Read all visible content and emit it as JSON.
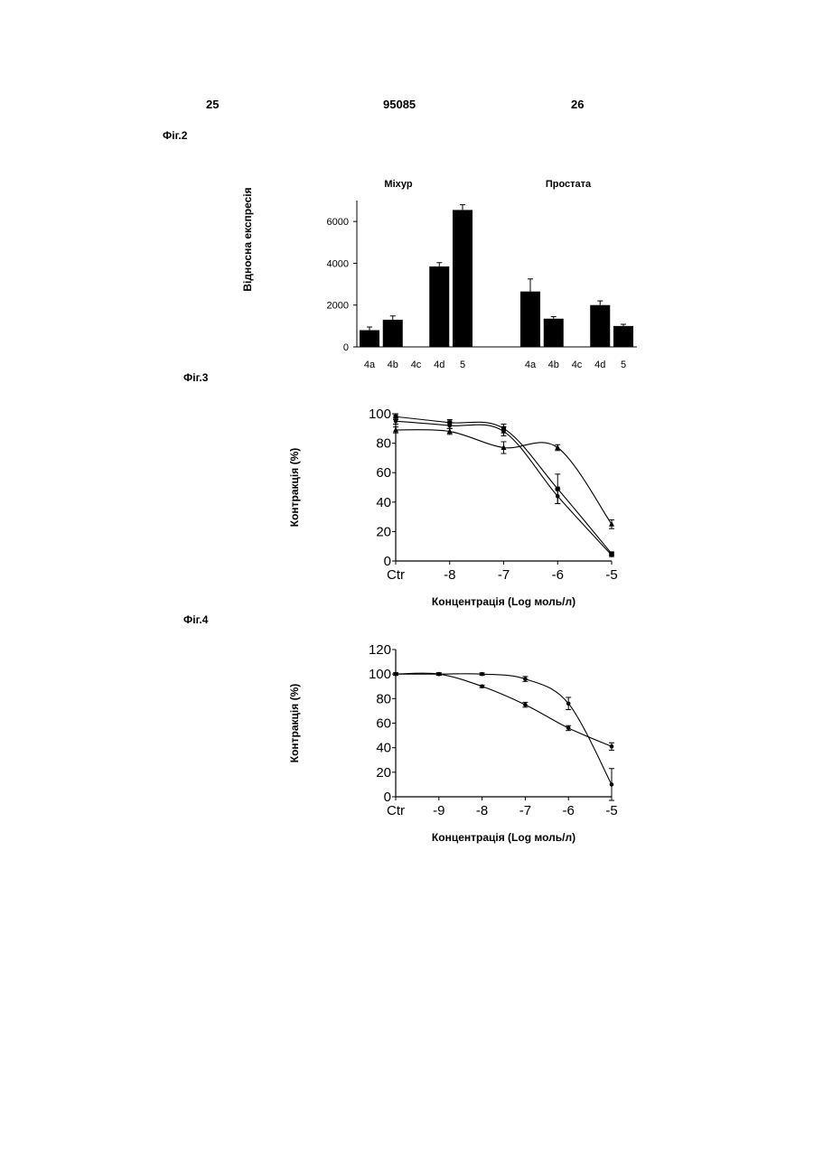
{
  "header": {
    "page_left": "25",
    "doc_number": "95085",
    "page_right": "26"
  },
  "figure_labels": {
    "fig2": "Фіг.2",
    "fig3": "Фіг.3",
    "fig4": "Фіг.4"
  },
  "chart_data": [
    {
      "id": "fig2",
      "type": "bar",
      "ylabel": "Відносна експресія",
      "ylim": [
        0,
        7000
      ],
      "yticks": [
        0,
        2000,
        4000,
        6000
      ],
      "grid": false,
      "groups": [
        {
          "name": "Міхур",
          "categories": [
            "4a",
            "4b",
            "4c",
            "4d",
            "5"
          ],
          "values": [
            800,
            1300,
            0,
            3850,
            6550
          ],
          "errors": [
            150,
            180,
            0,
            180,
            250
          ]
        },
        {
          "name": "Простата",
          "categories": [
            "4a",
            "4b",
            "4c",
            "4d",
            "5"
          ],
          "values": [
            2650,
            1350,
            0,
            2000,
            1000
          ],
          "errors": [
            600,
            100,
            0,
            200,
            80
          ]
        }
      ]
    },
    {
      "id": "fig3",
      "type": "line",
      "xlabel": "Концентрація (Log моль/л)",
      "ylabel": "Контракція (%)",
      "x_ticks": [
        "Ctr",
        "-8",
        "-7",
        "-6",
        "-5"
      ],
      "x_tick_values": [
        -9,
        -8,
        -7,
        -6,
        -5
      ],
      "ylim": [
        0,
        100
      ],
      "yticks": [
        0,
        20,
        40,
        60,
        80,
        100
      ],
      "grid": false,
      "series": [
        {
          "marker": "circle",
          "x": [
            -9,
            -8,
            -7,
            -6,
            -5
          ],
          "y": [
            95,
            92,
            88,
            44,
            4
          ],
          "err": [
            2,
            2,
            3,
            5,
            1
          ]
        },
        {
          "marker": "square",
          "x": [
            -9,
            -8,
            -7,
            -6,
            -5
          ],
          "y": [
            98,
            94,
            90,
            49,
            5
          ],
          "err": [
            2,
            2,
            3,
            10,
            1
          ]
        },
        {
          "marker": "triangle",
          "x": [
            -9,
            -8,
            -7,
            -6,
            -5
          ],
          "y": [
            89,
            88,
            77,
            77,
            25
          ],
          "err": [
            2,
            2,
            4,
            2,
            3
          ]
        }
      ]
    },
    {
      "id": "fig4",
      "type": "line",
      "xlabel": "Концентрація (Log моль/л)",
      "ylabel": "Контракція (%)",
      "x_ticks": [
        "Ctr",
        "-9",
        "-8",
        "-7",
        "-6",
        "-5"
      ],
      "x_tick_values": [
        -10,
        -9,
        -8,
        -7,
        -6,
        -5
      ],
      "ylim": [
        0,
        120
      ],
      "yticks": [
        0,
        20,
        40,
        60,
        80,
        100,
        120
      ],
      "grid": false,
      "series": [
        {
          "marker": "circle",
          "x": [
            -10,
            -9,
            -8,
            -7,
            -6,
            -5
          ],
          "y": [
            100,
            100,
            100,
            96,
            76,
            10
          ],
          "err": [
            1,
            1,
            1,
            2,
            5,
            13
          ]
        },
        {
          "marker": "circle",
          "x": [
            -10,
            -9,
            -8,
            -7,
            -6,
            -5
          ],
          "y": [
            100,
            100,
            90,
            75,
            56,
            41
          ],
          "err": [
            1,
            1,
            1,
            2,
            2,
            3
          ]
        }
      ]
    }
  ]
}
